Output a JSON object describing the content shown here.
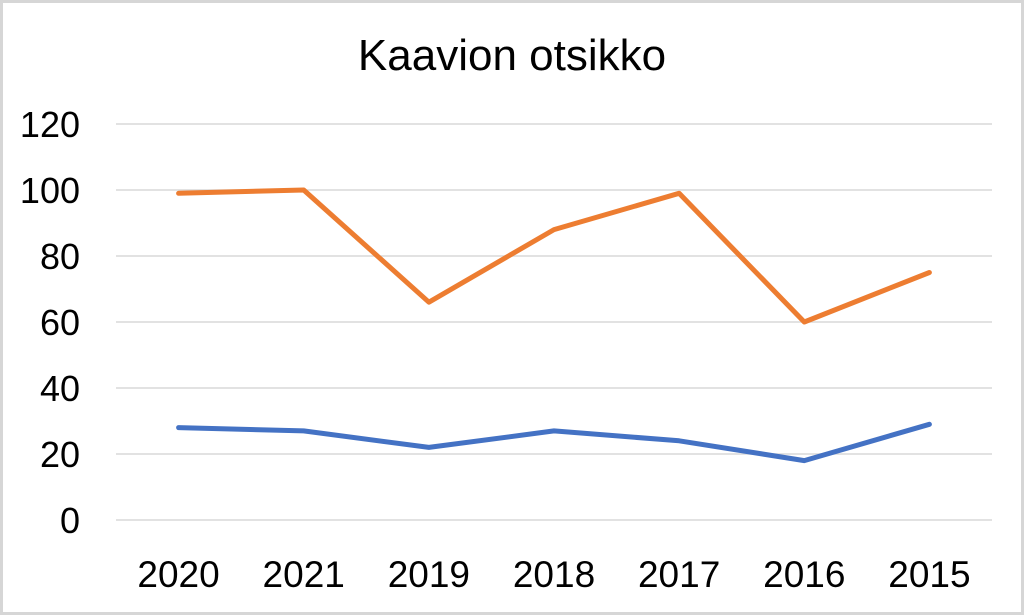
{
  "chart_data": {
    "type": "line",
    "title": "Kaavion otsikko",
    "categories": [
      "2020",
      "2021",
      "2019",
      "2018",
      "2017",
      "2016",
      "2015"
    ],
    "series": [
      {
        "id": "blue-series",
        "color": "#4472C4",
        "values": [
          28,
          27,
          22,
          27,
          24,
          18,
          29
        ]
      },
      {
        "id": "orange-series",
        "color": "#ED7D31",
        "values": [
          99,
          100,
          66,
          88,
          99,
          60,
          75
        ]
      }
    ],
    "xlabel": "",
    "ylabel": "",
    "ylim": [
      0,
      120
    ],
    "ytick_step": 20,
    "yticks": [
      0,
      20,
      40,
      60,
      80,
      100,
      120
    ],
    "grid": true,
    "legend": "none"
  },
  "style": {
    "background": "#FFFFFF",
    "frame_border_color": "#D6D6D6",
    "gridline_color": "#D9D9D9",
    "text_color": "#000000",
    "title_color": "#000000",
    "line_width": 5
  }
}
